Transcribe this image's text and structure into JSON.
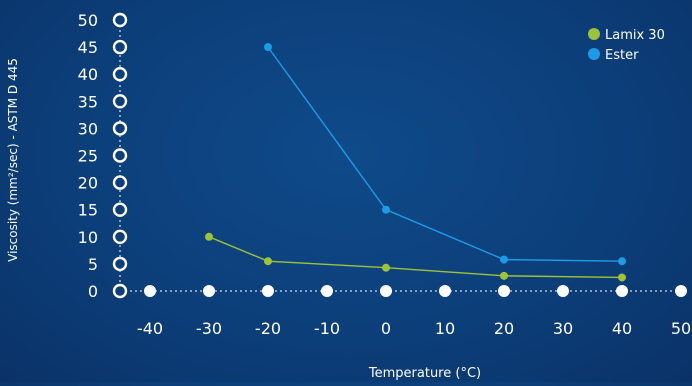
{
  "chart_data": {
    "type": "line",
    "title": "",
    "xlabel": "Temperature (°C)",
    "ylabel": "Viscosity (mm²/sec) - ASTM D 445",
    "xlim": [
      -50,
      50
    ],
    "ylim": [
      0,
      50
    ],
    "x_ticks": [
      -40,
      -30,
      -20,
      -10,
      0,
      10,
      20,
      30,
      40,
      50
    ],
    "y_ticks": [
      0,
      5,
      10,
      15,
      20,
      25,
      30,
      35,
      40,
      45,
      50
    ],
    "grid": false,
    "legend_position": "top-right",
    "series": [
      {
        "name": "Lamix 30",
        "color": "#9ec23a",
        "points": [
          {
            "x": -30,
            "y": 10
          },
          {
            "x": -20,
            "y": 5.5
          },
          {
            "x": 0,
            "y": 4.3
          },
          {
            "x": 20,
            "y": 2.8
          },
          {
            "x": 40,
            "y": 2.5
          }
        ]
      },
      {
        "name": "Ester",
        "color": "#1e9be6",
        "points": [
          {
            "x": -20,
            "y": 45
          },
          {
            "x": 0,
            "y": 15
          },
          {
            "x": 20,
            "y": 5.8
          },
          {
            "x": 40,
            "y": 5.5
          }
        ]
      }
    ]
  }
}
